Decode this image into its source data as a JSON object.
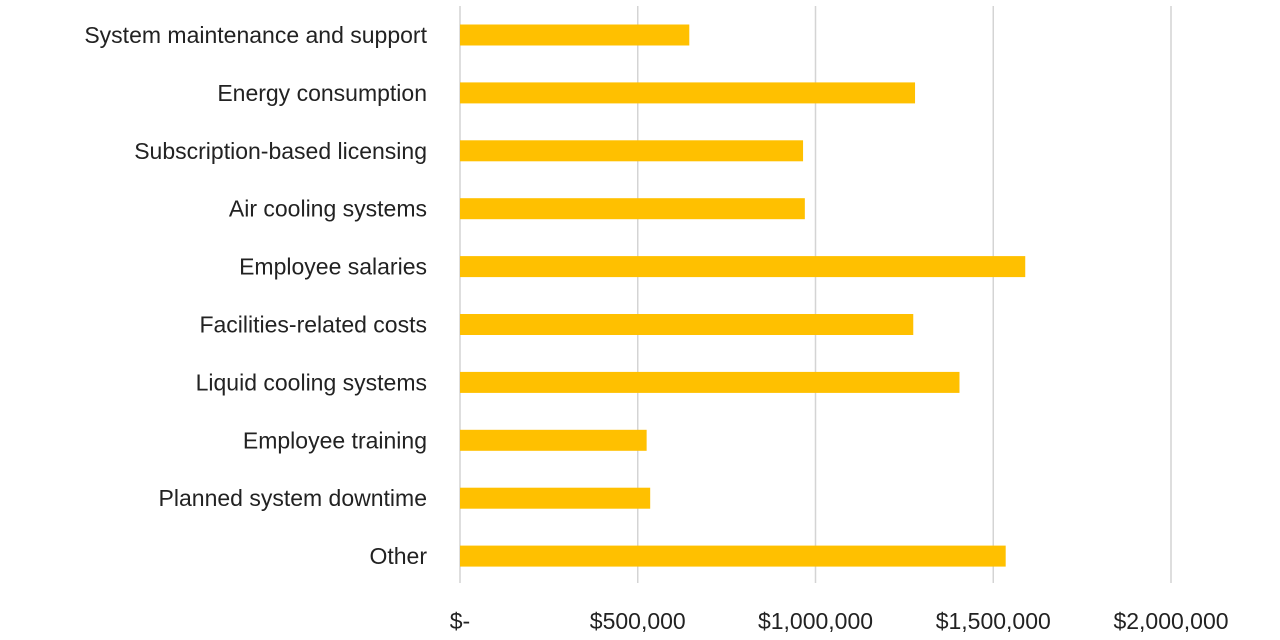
{
  "chart_data": {
    "type": "bar",
    "orientation": "horizontal",
    "categories": [
      "System maintenance and support",
      "Energy consumption",
      "Subscription-based licensing",
      "Air cooling systems",
      "Employee salaries",
      "Facilities-related costs",
      "Liquid cooling systems",
      "Employee training",
      "Planned system downtime",
      "Other"
    ],
    "values": [
      645000,
      1280000,
      965000,
      970000,
      1590000,
      1275000,
      1405000,
      525000,
      535000,
      1535000
    ],
    "xlim": [
      0,
      2000000
    ],
    "x_ticks": [
      0,
      500000,
      1000000,
      1500000,
      2000000
    ],
    "x_tick_labels": [
      "$-",
      "$500,000",
      "$1,000,000",
      "$1,500,000",
      "$2,000,000"
    ],
    "title": "",
    "xlabel": "",
    "ylabel": "",
    "grid": "vertical",
    "legend": "none",
    "bar_color": "#FFC000"
  }
}
